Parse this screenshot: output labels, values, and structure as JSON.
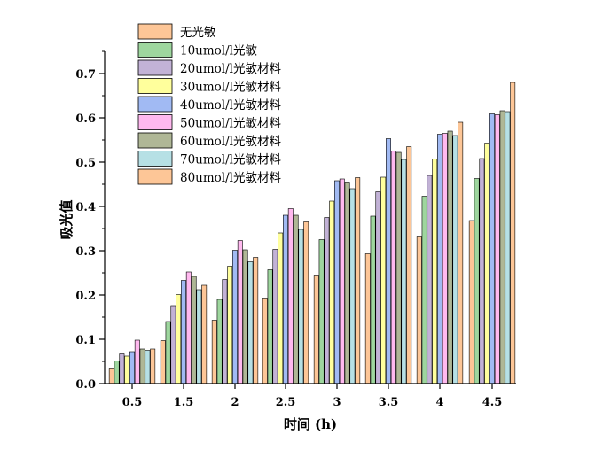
{
  "chart_data": {
    "type": "bar",
    "xlabel": "时间 (h)",
    "ylabel": "吸光值",
    "categories": [
      "0.5",
      "1.5",
      "2",
      "2.5",
      "3",
      "3.5",
      "4",
      "4.5"
    ],
    "ylim": [
      0,
      0.75
    ],
    "yticks": [
      "0.0",
      "0.1",
      "0.2",
      "0.3",
      "0.4",
      "0.5",
      "0.6",
      "0.7"
    ],
    "grid": false,
    "legend_position": "top-left",
    "series": [
      {
        "name": "无光敏",
        "color": "#FDC697",
        "values": [
          0.035,
          0.097,
          0.143,
          0.193,
          0.245,
          0.293,
          0.333,
          0.368
        ]
      },
      {
        "name": "10umol/l光敏",
        "color": "#9ED69E",
        "values": [
          0.051,
          0.14,
          0.19,
          0.257,
          0.325,
          0.378,
          0.423,
          0.463
        ]
      },
      {
        "name": "20umol/l光敏材料",
        "color": "#C2B2D6",
        "values": [
          0.067,
          0.176,
          0.235,
          0.303,
          0.375,
          0.433,
          0.47,
          0.508
        ]
      },
      {
        "name": "30umol/l光敏材料",
        "color": "#FFFF9C",
        "values": [
          0.062,
          0.201,
          0.265,
          0.34,
          0.412,
          0.466,
          0.507,
          0.543
        ]
      },
      {
        "name": "40umol/l光敏材料",
        "color": "#A1BAF3",
        "values": [
          0.072,
          0.233,
          0.301,
          0.38,
          0.458,
          0.553,
          0.563,
          0.609
        ]
      },
      {
        "name": "50umol/l光敏材料",
        "color": "#FFB9EF",
        "values": [
          0.098,
          0.252,
          0.323,
          0.395,
          0.462,
          0.525,
          0.565,
          0.607
        ]
      },
      {
        "name": "60umol/l光敏材料",
        "color": "#AFB796",
        "values": [
          0.078,
          0.242,
          0.302,
          0.38,
          0.455,
          0.522,
          0.57,
          0.616
        ]
      },
      {
        "name": "70umol/l光敏材料",
        "color": "#B6E0E5",
        "values": [
          0.075,
          0.212,
          0.275,
          0.348,
          0.44,
          0.506,
          0.56,
          0.614
        ]
      },
      {
        "name": "80umol/l光敏材料",
        "color": "#FDC697",
        "values": [
          0.078,
          0.222,
          0.285,
          0.365,
          0.465,
          0.535,
          0.59,
          0.68
        ]
      }
    ]
  }
}
